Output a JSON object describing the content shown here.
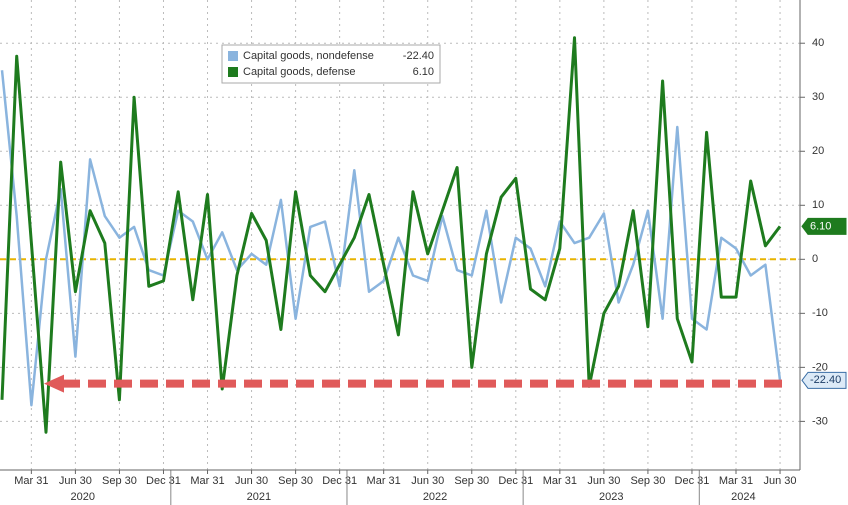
{
  "chart_data": {
    "type": "line",
    "categories": [
      null,
      null,
      "Mar 31",
      null,
      null,
      "Jun 30",
      null,
      null,
      "Sep 30",
      null,
      null,
      "Dec 31",
      null,
      null,
      "Mar 31",
      null,
      null,
      "Jun 30",
      null,
      null,
      "Sep 30",
      null,
      null,
      "Dec 31",
      null,
      null,
      "Mar 31",
      null,
      null,
      "Jun 30",
      null,
      null,
      "Sep 30",
      null,
      null,
      "Dec 31",
      null,
      null,
      "Mar 31",
      null,
      null,
      "Jun 30",
      null,
      null,
      "Sep 30",
      null,
      null,
      "Dec 31",
      null,
      null,
      "Mar 31",
      null,
      null,
      "Jun 30"
    ],
    "years": [
      "2020",
      "2021",
      "2022",
      "2023",
      "2024"
    ],
    "series": [
      {
        "name": "Capital goods, nondefense",
        "color": "#8ab4de",
        "last_label": "-22.40",
        "values": [
          35,
          8,
          -27,
          0,
          13,
          -18,
          18.5,
          8,
          4,
          6,
          -2,
          -3,
          9,
          7,
          0,
          5,
          -2,
          1,
          -1,
          11,
          -11,
          6,
          7,
          -5,
          16.5,
          -6,
          -4,
          4,
          -3,
          -4,
          8,
          -2,
          -3,
          9,
          -8,
          4,
          2,
          -5,
          7,
          3,
          4,
          8.5,
          -8,
          -1,
          9,
          -11,
          24.5,
          -11,
          -13,
          4,
          2,
          -3,
          -1,
          -22.4
        ]
      },
      {
        "name": "Capital goods, defense",
        "color": "#1e7b1e",
        "last_label": "6.10",
        "values": [
          -26,
          37.6,
          3,
          -32,
          18,
          -6,
          9,
          3,
          -26,
          30,
          -5,
          -4,
          12.5,
          -7.5,
          12,
          -24,
          -3,
          8.5,
          3.5,
          -13,
          12.5,
          -3,
          -6,
          -1,
          4,
          12,
          -1,
          -14,
          12.5,
          1,
          9,
          17,
          -20,
          1,
          11.5,
          15,
          -5.5,
          -7.5,
          2,
          41,
          -23.5,
          -10,
          -5,
          9,
          -12.5,
          33,
          -11,
          -19,
          23.5,
          -7,
          -7,
          14.5,
          2.5,
          6.1
        ]
      }
    ],
    "ylim": [
      -39,
      48
    ],
    "yticks": [
      -30,
      -20,
      -10,
      0,
      10,
      20,
      30,
      40
    ],
    "grid": true,
    "zero_line": {
      "value": 0,
      "color": "#e8b400"
    },
    "reference_line": {
      "value": -23,
      "color": "#e05a5a"
    }
  }
}
